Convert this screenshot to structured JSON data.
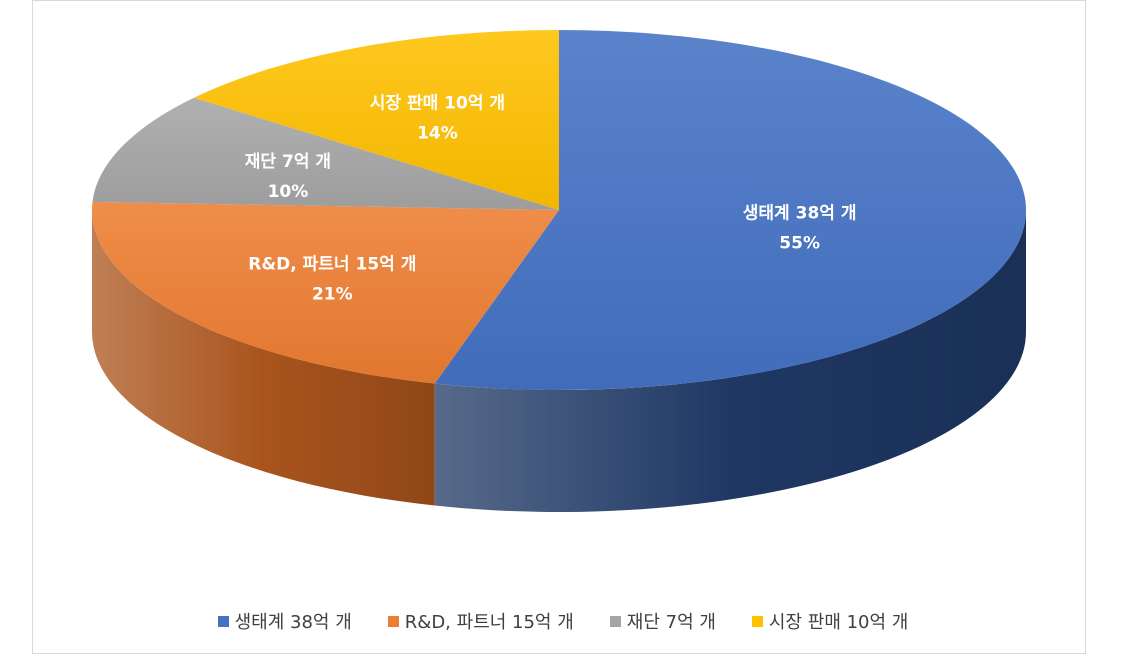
{
  "chart_data": {
    "type": "pie",
    "three_d": true,
    "slices": [
      {
        "name": "생태계 38억 개",
        "value": 38,
        "percent_label": "55%",
        "color": "#4472C4",
        "side_color": "#1F3864"
      },
      {
        "name": "R&D, 파트너 15억 개",
        "value": 15,
        "percent_label": "21%",
        "color": "#ED7D31",
        "side_color": "#A9541C"
      },
      {
        "name": "재단 7억 개",
        "value": 7,
        "percent_label": "10%",
        "color": "#A5A5A5",
        "side_color": "#6E6E6E"
      },
      {
        "name": "시장 판매 10억 개",
        "value": 10,
        "percent_label": "14%",
        "color": "#FFC000",
        "side_color": "#B38700"
      }
    ],
    "legend_placement": "bottom"
  },
  "legend": [
    {
      "label": "생태계 38억 개",
      "color": "#4472C4"
    },
    {
      "label": "R&D, 파트너 15억 개",
      "color": "#ED7D31"
    },
    {
      "label": "재단 7억 개",
      "color": "#A5A5A5"
    },
    {
      "label": "시장 판매 10억 개",
      "color": "#FFC000"
    }
  ]
}
